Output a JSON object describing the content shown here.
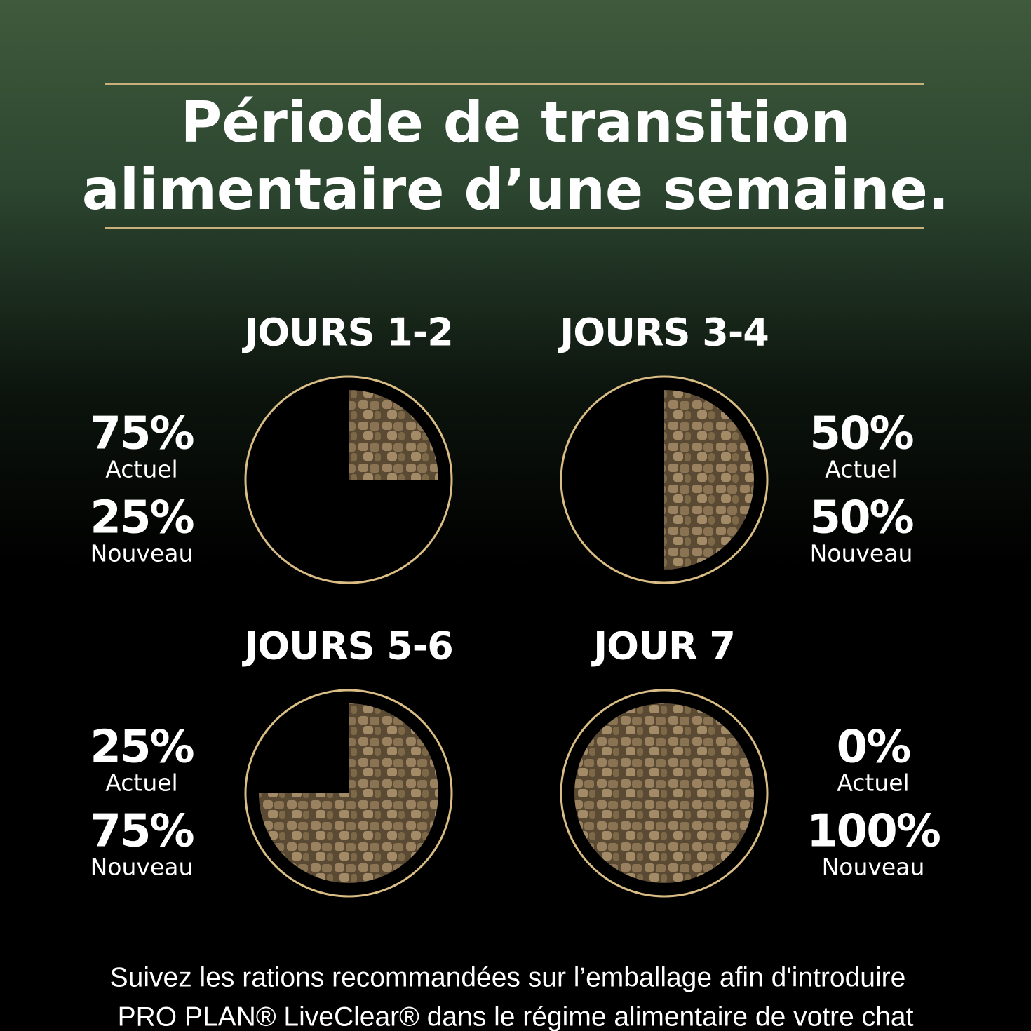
{
  "title_lines": [
    "Période de transition",
    "alimentaire d’une semaine."
  ],
  "panels": [
    {
      "title": "JOURS 1-2",
      "values": [
        75,
        25
      ],
      "value_labels": [
        "75%",
        "25%"
      ],
      "labels": [
        "Actuel",
        "Nouveau"
      ]
    },
    {
      "title": "JOURS 3-4",
      "values": [
        50,
        50
      ],
      "value_labels": [
        "50%",
        "50%"
      ],
      "labels": [
        "Actuel",
        "Nouveau"
      ]
    },
    {
      "title": "JOURS 5-6",
      "values": [
        25,
        75
      ],
      "value_labels": [
        "25%",
        "75%"
      ],
      "labels": [
        "Actuel",
        "Nouveau"
      ]
    },
    {
      "title": "JOUR 7",
      "values": [
        0,
        100
      ],
      "value_labels": [
        "0%",
        "100%"
      ],
      "labels": [
        "Actuel",
        "Nouveau"
      ]
    }
  ],
  "footer_lines": [
    "Suivez  les rations recommandées sur l’emballage afin d'introduire",
    "PRO PLAN® LiveClear® dans le régime alimentaire de votre chat"
  ]
}
